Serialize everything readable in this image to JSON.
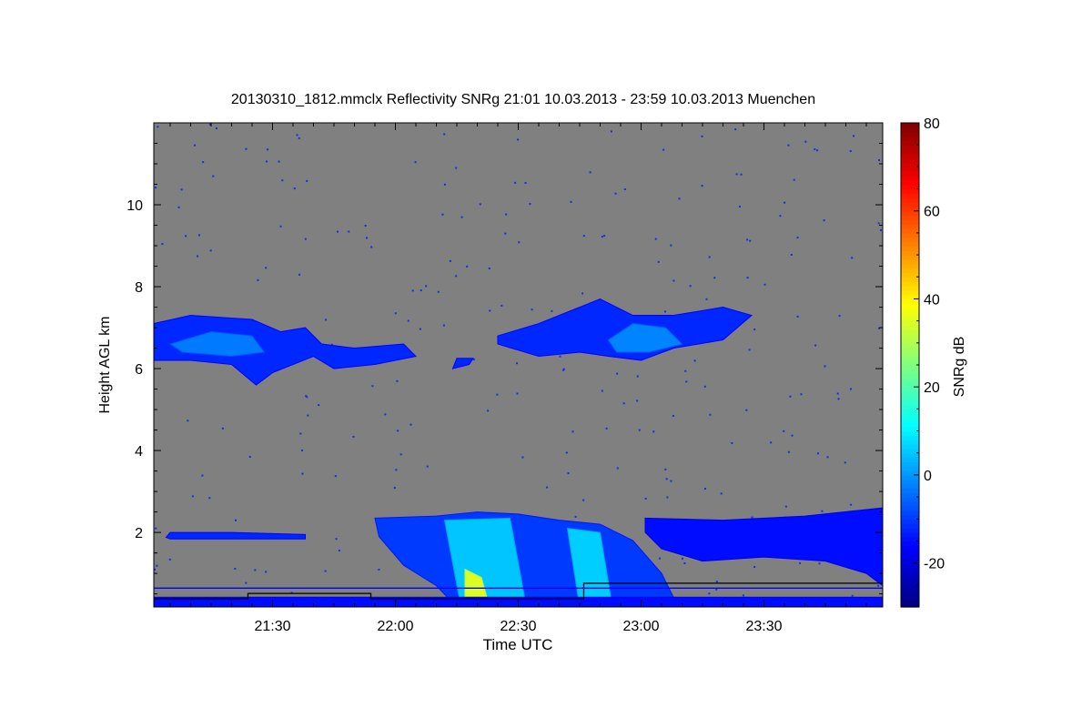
{
  "chart_data": {
    "type": "heatmap",
    "title": "20130310_1812.mmclx Reflectivity SNRg   21:01 10.03.2013 - 23:59 10.03.2013 Muenchen",
    "xlabel": "Time UTC",
    "ylabel": "Height AGL km",
    "colorbar_label": "SNRg dB",
    "x_range_minutes_after_2100": [
      1,
      179
    ],
    "y_range_km": [
      0.18,
      12.0
    ],
    "color_range_db": [
      -30,
      80
    ],
    "x_ticks": [
      {
        "t": 30,
        "label": "21:30"
      },
      {
        "t": 60,
        "label": "22:00"
      },
      {
        "t": 90,
        "label": "22:30"
      },
      {
        "t": 120,
        "label": "23:00"
      },
      {
        "t": 150,
        "label": "23:30"
      }
    ],
    "y_ticks": [
      {
        "v": 2,
        "label": "2"
      },
      {
        "v": 4,
        "label": "4"
      },
      {
        "v": 6,
        "label": "6"
      },
      {
        "v": 8,
        "label": "8"
      },
      {
        "v": 10,
        "label": "10"
      }
    ],
    "colorbar_ticks": [
      {
        "v": -20,
        "label": "-20"
      },
      {
        "v": 0,
        "label": "0"
      },
      {
        "v": 20,
        "label": "20"
      },
      {
        "v": 40,
        "label": "40"
      },
      {
        "v": 60,
        "label": "60"
      },
      {
        "v": 80,
        "label": "80"
      }
    ],
    "background_color": "#808080",
    "echo_regions": [
      {
        "name": "cirrus-early",
        "snr": -12,
        "points": [
          [
            1,
            6.2
          ],
          [
            1,
            7.1
          ],
          [
            10,
            7.3
          ],
          [
            25,
            7.2
          ],
          [
            32,
            6.9
          ],
          [
            38,
            7.0
          ],
          [
            42,
            6.6
          ],
          [
            50,
            6.5
          ],
          [
            62,
            6.6
          ],
          [
            65,
            6.3
          ],
          [
            55,
            6.1
          ],
          [
            45,
            6.0
          ],
          [
            40,
            6.3
          ],
          [
            30,
            5.9
          ],
          [
            26,
            5.6
          ],
          [
            20,
            6.1
          ],
          [
            10,
            6.2
          ]
        ]
      },
      {
        "name": "cirrus-early-core",
        "snr": -3,
        "points": [
          [
            5,
            6.6
          ],
          [
            15,
            6.9
          ],
          [
            25,
            6.8
          ],
          [
            28,
            6.4
          ],
          [
            20,
            6.3
          ],
          [
            8,
            6.4
          ]
        ]
      },
      {
        "name": "cirrus-small",
        "snr": -12,
        "points": [
          [
            74,
            6.0
          ],
          [
            78,
            6.1
          ],
          [
            79,
            6.25
          ],
          [
            75,
            6.25
          ]
        ]
      },
      {
        "name": "cirrus-late",
        "snr": -12,
        "points": [
          [
            85,
            6.8
          ],
          [
            95,
            7.1
          ],
          [
            105,
            7.5
          ],
          [
            110,
            7.7
          ],
          [
            118,
            7.3
          ],
          [
            128,
            7.3
          ],
          [
            140,
            7.5
          ],
          [
            147,
            7.3
          ],
          [
            140,
            6.7
          ],
          [
            128,
            6.5
          ],
          [
            120,
            6.2
          ],
          [
            112,
            6.3
          ],
          [
            105,
            6.4
          ],
          [
            95,
            6.3
          ],
          [
            85,
            6.6
          ]
        ]
      },
      {
        "name": "cirrus-late-core",
        "snr": -2,
        "points": [
          [
            112,
            6.7
          ],
          [
            118,
            7.1
          ],
          [
            126,
            7.0
          ],
          [
            130,
            6.6
          ],
          [
            122,
            6.4
          ],
          [
            114,
            6.4
          ]
        ]
      },
      {
        "name": "thin-layer-2km",
        "snr": -12,
        "points": [
          [
            4,
            1.88
          ],
          [
            5,
            2.0
          ],
          [
            20,
            2.0
          ],
          [
            38,
            1.95
          ],
          [
            38,
            1.84
          ],
          [
            5,
            1.84
          ]
        ]
      },
      {
        "name": "precip-main",
        "snr": -10,
        "points": [
          [
            55,
            2.35
          ],
          [
            70,
            2.4
          ],
          [
            80,
            2.5
          ],
          [
            90,
            2.45
          ],
          [
            100,
            2.3
          ],
          [
            110,
            2.2
          ],
          [
            118,
            1.8
          ],
          [
            125,
            1.0
          ],
          [
            128,
            0.4
          ],
          [
            128,
            0.18
          ],
          [
            75,
            0.18
          ],
          [
            70,
            0.7
          ],
          [
            62,
            1.2
          ],
          [
            56,
            1.9
          ]
        ]
      },
      {
        "name": "precip-band-1",
        "snr": 5,
        "points": [
          [
            72,
            2.3
          ],
          [
            88,
            2.35
          ],
          [
            92,
            0.18
          ],
          [
            76,
            0.18
          ]
        ]
      },
      {
        "name": "precip-band-2",
        "snr": 6,
        "points": [
          [
            102,
            2.1
          ],
          [
            110,
            2.0
          ],
          [
            113,
            0.18
          ],
          [
            105,
            0.18
          ]
        ]
      },
      {
        "name": "precip-core",
        "snr": 35,
        "points": [
          [
            77,
            1.1
          ],
          [
            81,
            0.9
          ],
          [
            83,
            0.18
          ],
          [
            77,
            0.18
          ]
        ]
      },
      {
        "name": "low-layer-late",
        "snr": -15,
        "points": [
          [
            121,
            2.35
          ],
          [
            140,
            2.3
          ],
          [
            160,
            2.4
          ],
          [
            179,
            2.6
          ],
          [
            179,
            0.7
          ],
          [
            175,
            1.0
          ],
          [
            165,
            1.3
          ],
          [
            150,
            1.4
          ],
          [
            135,
            1.3
          ],
          [
            125,
            1.6
          ],
          [
            121,
            2.0
          ]
        ]
      },
      {
        "name": "surface-clutter",
        "snr": -15,
        "points": [
          [
            1,
            0.18
          ],
          [
            1,
            0.42
          ],
          [
            179,
            0.42
          ],
          [
            179,
            0.18
          ]
        ]
      }
    ],
    "overlay_lines": [
      {
        "color": "#000000",
        "points": [
          [
            1,
            0.38
          ],
          [
            24,
            0.38
          ],
          [
            24,
            0.51
          ],
          [
            54,
            0.51
          ],
          [
            54,
            0.38
          ],
          [
            106,
            0.38
          ],
          [
            106,
            0.76
          ],
          [
            179,
            0.76
          ]
        ]
      },
      {
        "color": "#0000ff",
        "points": [
          [
            1,
            0.64
          ],
          [
            179,
            0.64
          ]
        ]
      }
    ]
  }
}
